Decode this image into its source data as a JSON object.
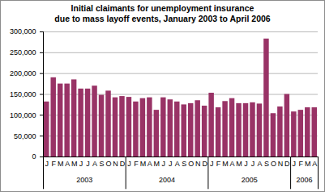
{
  "chart_data": {
    "type": "bar",
    "title": "Initial claimants for unemployment insurance\ndue to mass layoff events, January 2003 to April 2006",
    "categories": [
      "J",
      "F",
      "M",
      "A",
      "M",
      "J",
      "J",
      "A",
      "S",
      "O",
      "N",
      "D",
      "J",
      "F",
      "M",
      "A",
      "M",
      "J",
      "J",
      "A",
      "S",
      "O",
      "N",
      "D",
      "J",
      "F",
      "M",
      "A",
      "M",
      "J",
      "J",
      "A",
      "S",
      "O",
      "N",
      "D",
      "J",
      "F",
      "M",
      "A"
    ],
    "x_groups": [
      "2003",
      "2004",
      "2005",
      "2006"
    ],
    "x_group_sizes": [
      12,
      12,
      12,
      4
    ],
    "values": [
      132000,
      190000,
      175000,
      175000,
      185000,
      163000,
      163000,
      170000,
      148000,
      158000,
      142000,
      145000,
      143000,
      132000,
      140000,
      142000,
      112000,
      142000,
      137000,
      132000,
      125000,
      128000,
      135000,
      122000,
      153000,
      118000,
      133000,
      140000,
      128000,
      128000,
      130000,
      127000,
      283000,
      104000,
      120000,
      150000,
      108000,
      112000,
      118000,
      118000
    ],
    "color": "#993366",
    "ylim": [
      0,
      300000
    ],
    "yticks": [
      0,
      {
        "value": 50000,
        "label": "50,000"
      },
      {
        "value": 100000,
        "label": "100,000"
      },
      {
        "value": 150000,
        "label": "150,000"
      },
      {
        "value": 200000,
        "label": "200,000"
      },
      {
        "value": 250000,
        "label": "250,000"
      },
      {
        "value": 300000,
        "label": "300,000"
      }
    ],
    "grid": true
  }
}
